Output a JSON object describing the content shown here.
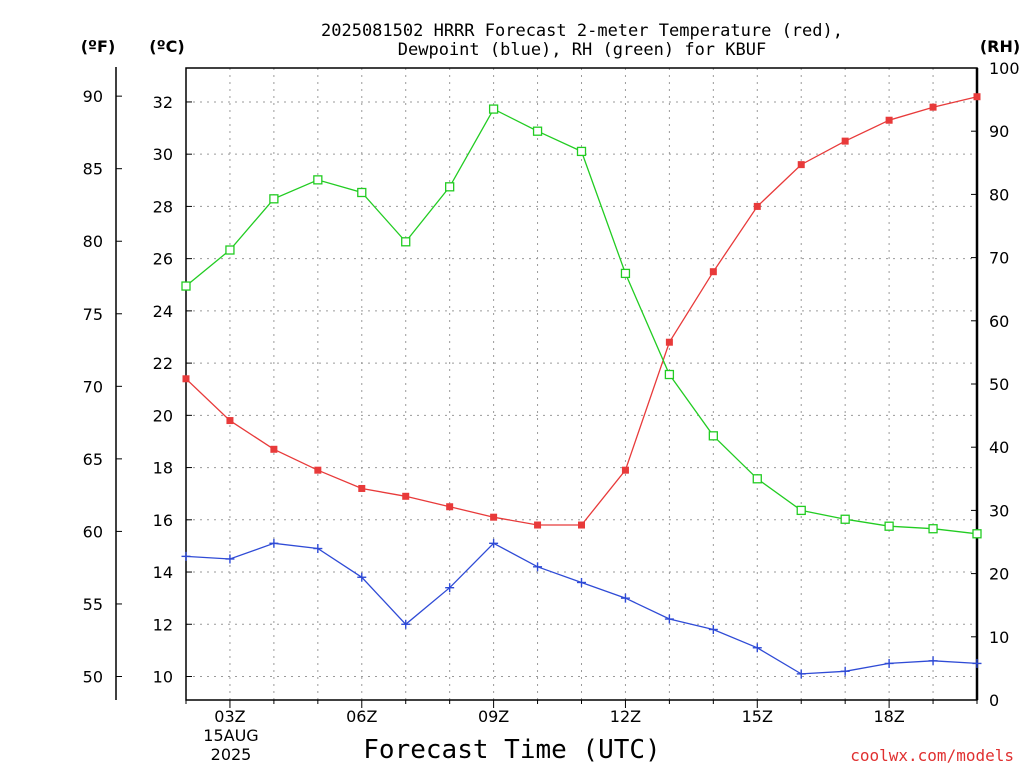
{
  "chart_data": {
    "type": "line",
    "title_line1": "2025081502 HRRR Forecast 2-meter Temperature (red),",
    "title_line2": "Dewpoint (blue), RH (green) for KBUF",
    "xlabel": "Forecast Time (UTC)",
    "x_tick_labels": [
      "03Z",
      "06Z",
      "09Z",
      "12Z",
      "15Z",
      "18Z"
    ],
    "date_label_line1": "15AUG",
    "date_label_line2": "2025",
    "x_hours": [
      2,
      3,
      4,
      5,
      6,
      7,
      8,
      9,
      10,
      11,
      12,
      13,
      14,
      15,
      16,
      17,
      18,
      19,
      20
    ],
    "xlim": [
      2,
      20
    ],
    "left_axis_f": {
      "unit_label": "(ºF)",
      "ticks": [
        50,
        55,
        60,
        65,
        70,
        75,
        80,
        85,
        90
      ]
    },
    "left_axis_c": {
      "unit_label": "(ºC)",
      "ticks": [
        10,
        12,
        14,
        16,
        18,
        20,
        22,
        24,
        26,
        28,
        30,
        32
      ],
      "ylim": [
        9.1,
        33.3
      ]
    },
    "right_axis_rh": {
      "unit_label": "(RH)",
      "ticks": [
        0,
        10,
        20,
        30,
        40,
        50,
        60,
        70,
        80,
        90,
        100
      ],
      "ylim": [
        0,
        100
      ]
    },
    "grid": true,
    "series": [
      {
        "name": "Temperature",
        "axis": "c",
        "color": "#e83a3a",
        "marker": "filled-square",
        "values": [
          21.4,
          19.8,
          18.7,
          17.9,
          17.2,
          16.9,
          16.5,
          16.1,
          15.8,
          15.8,
          17.9,
          22.8,
          25.5,
          28.0,
          29.6,
          30.5,
          31.3,
          31.8,
          32.2
        ]
      },
      {
        "name": "Dewpoint",
        "axis": "c",
        "color": "#2f4bd6",
        "marker": "plus",
        "values": [
          14.6,
          14.5,
          15.1,
          14.9,
          13.8,
          12.0,
          13.4,
          15.1,
          14.2,
          13.6,
          13.0,
          12.2,
          11.8,
          11.1,
          10.1,
          10.2,
          10.5,
          10.6,
          10.5
        ]
      },
      {
        "name": "RH",
        "axis": "rh",
        "color": "#22cc22",
        "marker": "open-square",
        "values": [
          65.5,
          71.2,
          79.3,
          82.3,
          80.3,
          72.5,
          81.2,
          93.5,
          90.0,
          86.8,
          67.5,
          51.5,
          41.8,
          35.0,
          30.0,
          28.6,
          27.5,
          27.1,
          26.3
        ]
      }
    ]
  },
  "credit": "coolwx.com/models"
}
